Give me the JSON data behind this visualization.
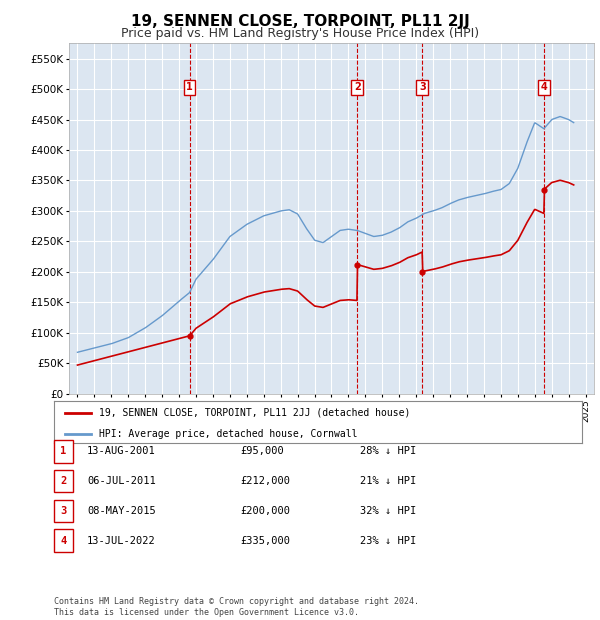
{
  "title": "19, SENNEN CLOSE, TORPOINT, PL11 2JJ",
  "subtitle": "Price paid vs. HM Land Registry's House Price Index (HPI)",
  "title_fontsize": 11,
  "subtitle_fontsize": 9,
  "background_color": "#ffffff",
  "plot_bg_color": "#dce6f1",
  "grid_color": "#ffffff",
  "ylim": [
    0,
    575000
  ],
  "yticks": [
    0,
    50000,
    100000,
    150000,
    200000,
    250000,
    300000,
    350000,
    400000,
    450000,
    500000,
    550000
  ],
  "ytick_labels": [
    "£0",
    "£50K",
    "£100K",
    "£150K",
    "£200K",
    "£250K",
    "£300K",
    "£350K",
    "£400K",
    "£450K",
    "£500K",
    "£550K"
  ],
  "xlim_start": 1994.5,
  "xlim_end": 2025.5,
  "sale_prices": [
    95000,
    212000,
    200000,
    335000
  ],
  "sale_labels": [
    "1",
    "2",
    "3",
    "4"
  ],
  "sale_color": "#cc0000",
  "hpi_color": "#6699cc",
  "legend_entries": [
    "19, SENNEN CLOSE, TORPOINT, PL11 2JJ (detached house)",
    "HPI: Average price, detached house, Cornwall"
  ],
  "table_rows": [
    {
      "num": "1",
      "date": "13-AUG-2001",
      "price": "£95,000",
      "pct": "28% ↓ HPI"
    },
    {
      "num": "2",
      "date": "06-JUL-2011",
      "price": "£212,000",
      "pct": "21% ↓ HPI"
    },
    {
      "num": "3",
      "date": "08-MAY-2015",
      "price": "£200,000",
      "pct": "32% ↓ HPI"
    },
    {
      "num": "4",
      "date": "13-JUL-2022",
      "price": "£335,000",
      "pct": "23% ↓ HPI"
    }
  ],
  "footnote": "Contains HM Land Registry data © Crown copyright and database right 2024.\nThis data is licensed under the Open Government Licence v3.0.",
  "sale_years": [
    2001.62,
    2011.52,
    2015.36,
    2022.54
  ]
}
